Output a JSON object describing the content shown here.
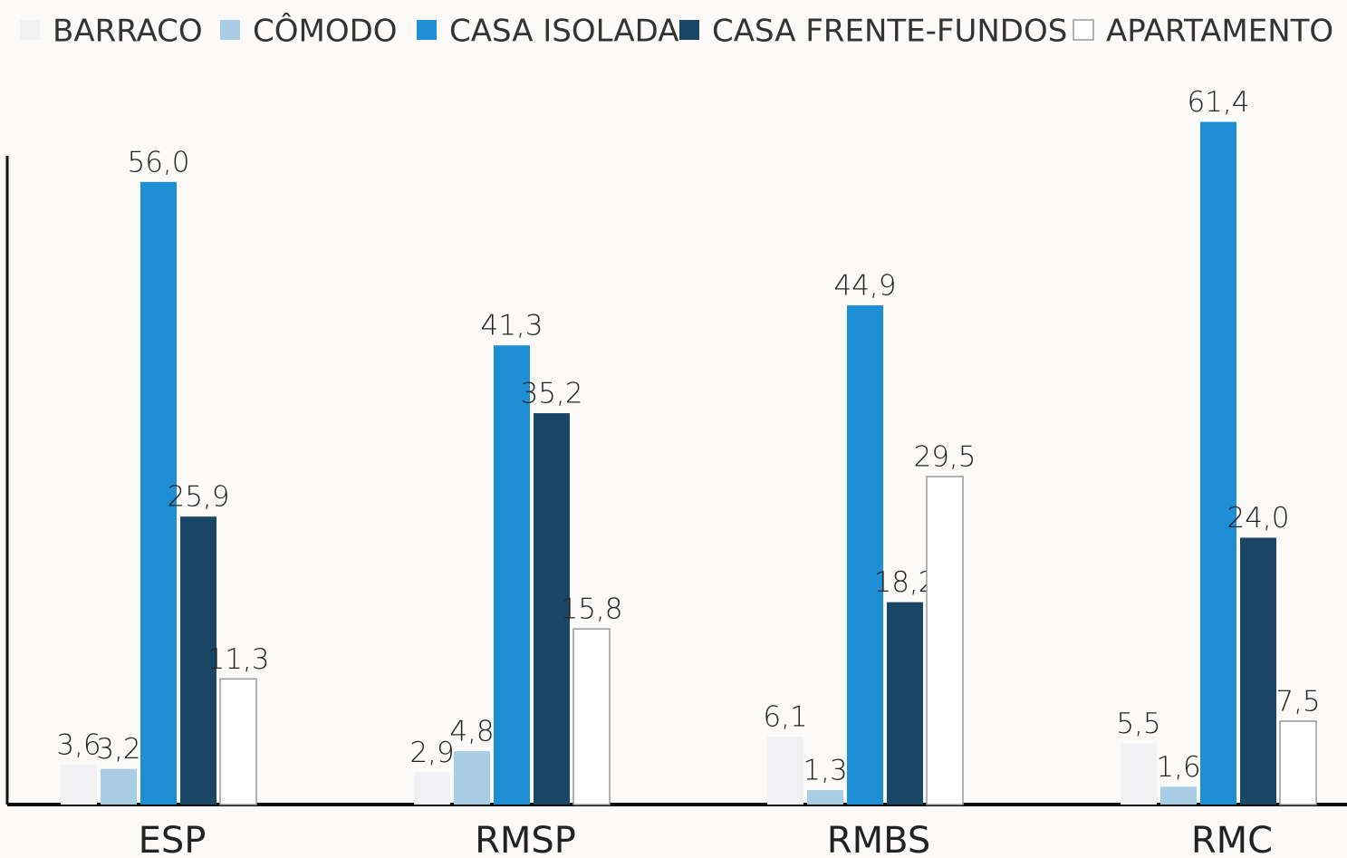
{
  "chart_data": {
    "type": "bar",
    "categories": [
      "ESP",
      "RMSP",
      "RMBS",
      "RMC"
    ],
    "series": [
      {
        "name": "BARRACO",
        "color": "#f1f1f3",
        "values": [
          3.6,
          2.9,
          6.1,
          5.5
        ],
        "value_labels": [
          "3,6",
          "2,9",
          "6,1",
          "5,5"
        ]
      },
      {
        "name": "CÔMODO",
        "color": "#a9cde5",
        "values": [
          3.2,
          4.8,
          1.3,
          1.6
        ],
        "value_labels": [
          "3,2",
          "4,8",
          "1,3",
          "1,6"
        ]
      },
      {
        "name": "CASA ISOLADA",
        "color": "#1e8fd5",
        "values": [
          56.0,
          41.3,
          44.9,
          61.4
        ],
        "value_labels": [
          "56,0",
          "41,3",
          "44,9",
          "61,4"
        ]
      },
      {
        "name": "CASA FRENTE-FUNDOS",
        "color": "#1b4767",
        "values": [
          25.9,
          35.2,
          18.2,
          24.0
        ],
        "value_labels": [
          "25,9",
          "35,2",
          "18,2",
          "24,0"
        ]
      },
      {
        "name": "APARTAMENTO",
        "color": "#ffffff",
        "values": [
          11.3,
          15.8,
          29.5,
          7.5
        ],
        "value_labels": [
          "11,3",
          "15,8",
          "29,5",
          "7,5"
        ]
      }
    ],
    "ylim": [
      0,
      70
    ],
    "legend": "top"
  }
}
